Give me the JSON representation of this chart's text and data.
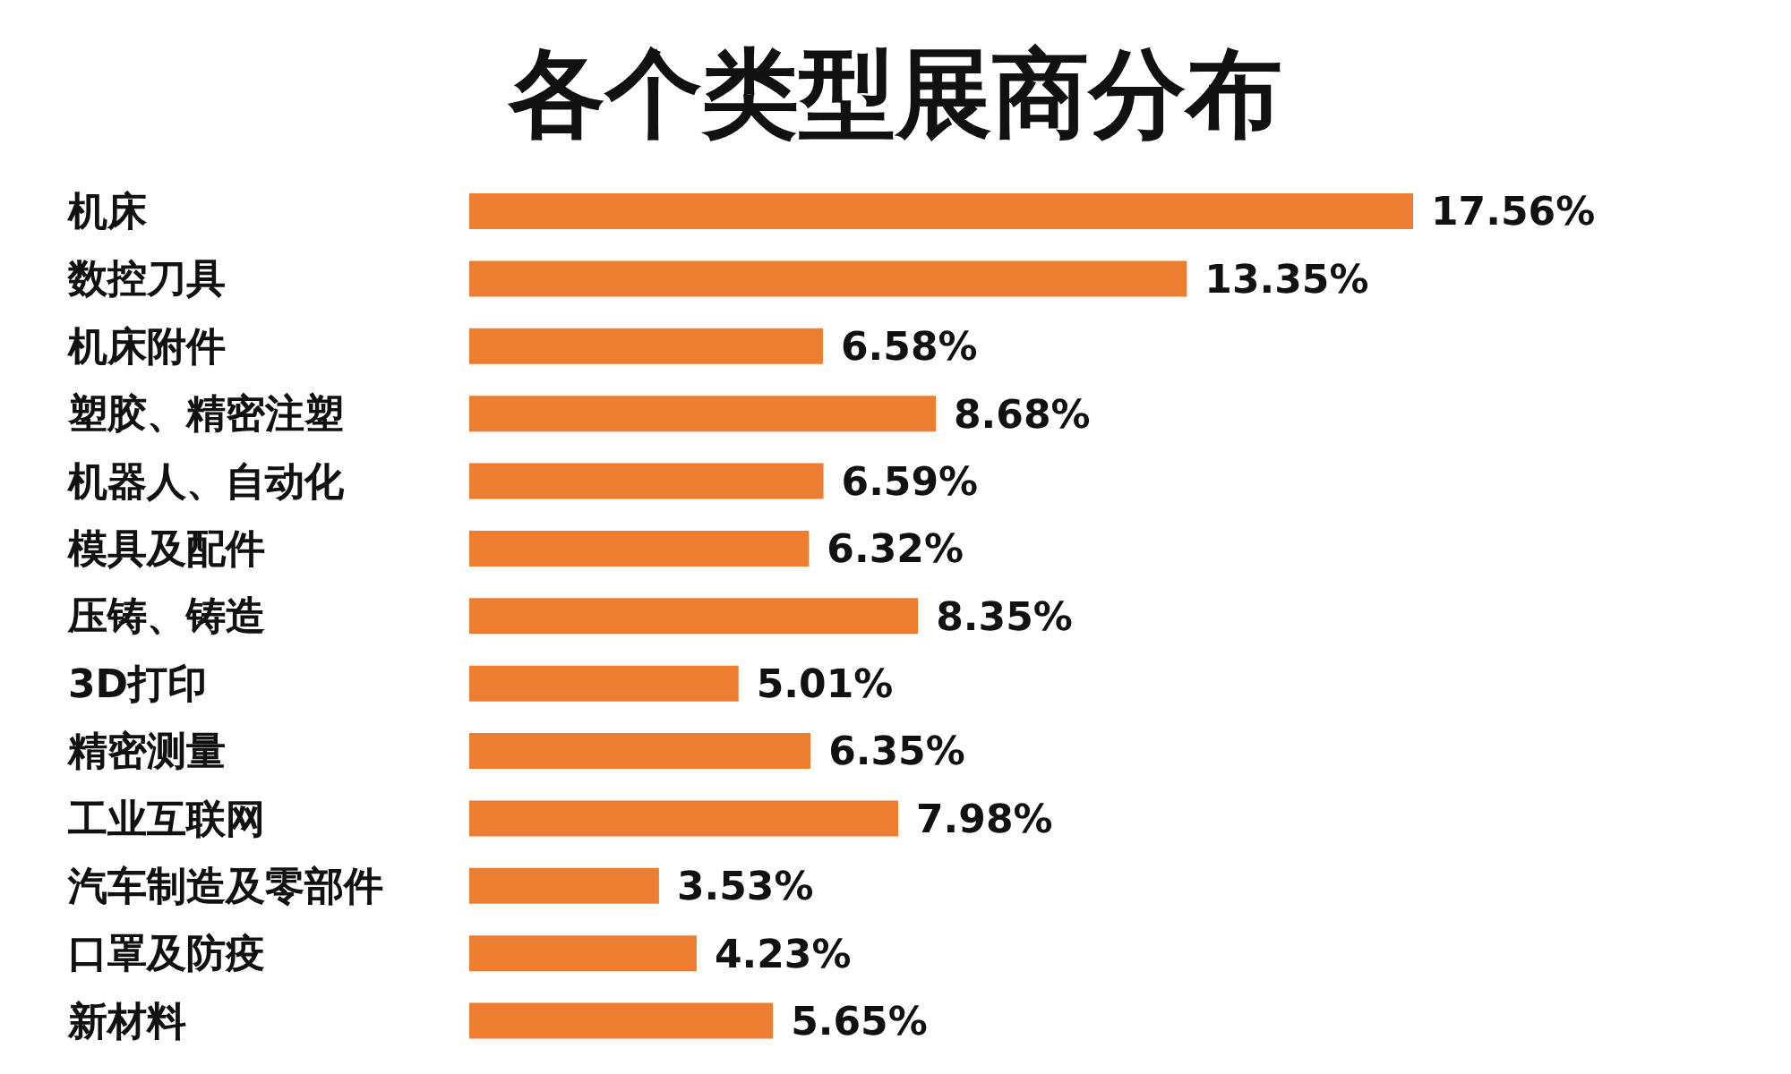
{
  "chart_data": {
    "type": "bar",
    "orientation": "horizontal",
    "relative": false,
    "title": "各个类型展商分布",
    "categories": [
      "机床",
      "数控刀具",
      "机床附件",
      "塑胶、精密注塑",
      "机器人、自动化",
      "模具及配件",
      "压铸、铸造",
      "3D打印",
      "精密测量",
      "工业互联网",
      "汽车制造及零部件",
      "口罩及防疫",
      "新材料"
    ],
    "values": [
      17.56,
      13.35,
      6.58,
      8.68,
      6.59,
      6.32,
      8.35,
      5.01,
      6.35,
      7.98,
      3.53,
      4.23,
      5.65
    ],
    "value_labels": [
      "17.56%",
      "13.35%",
      "6.58%",
      "8.68%",
      "6.59%",
      "6.32%",
      "8.35%",
      "5.01%",
      "6.35%",
      "7.98%",
      "3.53%",
      "4.23%",
      "5.65%"
    ],
    "color": "#ed7d31",
    "grid": false,
    "legend": false
  }
}
